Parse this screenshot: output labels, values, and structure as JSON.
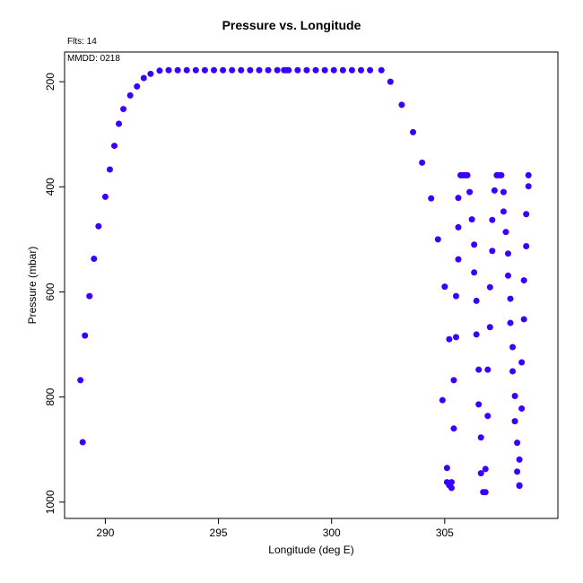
{
  "chart_data": {
    "type": "scatter",
    "title": "Pressure vs. Longitude",
    "xlabel": "Longitude (deg E)",
    "ylabel": "Pressure (mbar)",
    "annotations": {
      "flts": "Flts: 14",
      "mmdd": "MMDD: 0218"
    },
    "xlim": [
      288.2,
      310.0
    ],
    "ylim": [
      1031.0,
      143.5
    ],
    "y_reversed": true,
    "xticks": [
      290,
      295,
      300,
      305
    ],
    "yticks": [
      200,
      400,
      600,
      800,
      1000
    ],
    "grid": false,
    "marker_color": "#3a00ff",
    "points": [
      [
        289.0,
        886
      ],
      [
        288.9,
        768
      ],
      [
        289.1,
        683
      ],
      [
        289.3,
        608
      ],
      [
        289.5,
        537
      ],
      [
        289.7,
        475
      ],
      [
        290.0,
        419
      ],
      [
        290.2,
        367
      ],
      [
        290.4,
        322
      ],
      [
        290.6,
        280
      ],
      [
        290.8,
        252
      ],
      [
        291.1,
        226
      ],
      [
        291.4,
        209
      ],
      [
        291.7,
        193
      ],
      [
        292.0,
        185
      ],
      [
        292.4,
        179
      ],
      [
        292.8,
        178
      ],
      [
        293.2,
        178
      ],
      [
        293.6,
        178
      ],
      [
        294.0,
        178
      ],
      [
        294.4,
        178
      ],
      [
        294.8,
        178
      ],
      [
        295.2,
        178
      ],
      [
        295.6,
        178
      ],
      [
        296.0,
        178
      ],
      [
        296.4,
        178
      ],
      [
        296.8,
        178
      ],
      [
        297.2,
        178
      ],
      [
        297.6,
        178
      ],
      [
        297.9,
        178
      ],
      [
        298.0,
        178
      ],
      [
        298.1,
        178
      ],
      [
        298.5,
        178
      ],
      [
        298.9,
        178
      ],
      [
        299.3,
        178
      ],
      [
        299.7,
        178
      ],
      [
        300.1,
        178
      ],
      [
        300.5,
        178
      ],
      [
        300.9,
        178
      ],
      [
        301.3,
        178
      ],
      [
        301.7,
        178
      ],
      [
        302.2,
        178
      ],
      [
        302.6,
        200
      ],
      [
        303.1,
        244
      ],
      [
        303.6,
        296
      ],
      [
        304.0,
        354
      ],
      [
        304.4,
        422
      ],
      [
        304.7,
        500
      ],
      [
        304.9,
        806
      ],
      [
        305.0,
        590
      ],
      [
        305.1,
        935
      ],
      [
        305.1,
        962
      ],
      [
        305.2,
        690
      ],
      [
        305.2,
        968
      ],
      [
        305.3,
        973
      ],
      [
        305.3,
        962
      ],
      [
        305.4,
        860
      ],
      [
        305.4,
        768
      ],
      [
        305.5,
        686
      ],
      [
        305.5,
        608
      ],
      [
        305.6,
        538
      ],
      [
        305.6,
        477
      ],
      [
        305.6,
        421
      ],
      [
        305.7,
        378
      ],
      [
        305.8,
        378
      ],
      [
        305.9,
        378
      ],
      [
        306.0,
        378
      ],
      [
        306.1,
        410
      ],
      [
        306.2,
        462
      ],
      [
        306.3,
        510
      ],
      [
        306.3,
        563
      ],
      [
        306.4,
        617
      ],
      [
        306.4,
        681
      ],
      [
        306.5,
        748
      ],
      [
        306.5,
        814
      ],
      [
        306.6,
        877
      ],
      [
        306.6,
        945
      ],
      [
        306.7,
        981
      ],
      [
        306.8,
        981
      ],
      [
        306.8,
        937
      ],
      [
        306.9,
        836
      ],
      [
        306.9,
        748
      ],
      [
        307.0,
        667
      ],
      [
        307.0,
        591
      ],
      [
        307.1,
        522
      ],
      [
        307.1,
        463
      ],
      [
        307.2,
        407
      ],
      [
        307.3,
        378
      ],
      [
        307.4,
        378
      ],
      [
        307.5,
        378
      ],
      [
        307.6,
        410
      ],
      [
        307.6,
        447
      ],
      [
        307.7,
        486
      ],
      [
        307.8,
        527
      ],
      [
        307.8,
        569
      ],
      [
        307.9,
        613
      ],
      [
        307.9,
        659
      ],
      [
        308.0,
        705
      ],
      [
        308.0,
        751
      ],
      [
        308.1,
        798
      ],
      [
        308.1,
        846
      ],
      [
        308.2,
        887
      ],
      [
        308.2,
        942
      ],
      [
        308.3,
        968
      ],
      [
        308.3,
        969
      ],
      [
        308.3,
        919
      ],
      [
        308.4,
        822
      ],
      [
        308.4,
        734
      ],
      [
        308.5,
        652
      ],
      [
        308.5,
        578
      ],
      [
        308.6,
        513
      ],
      [
        308.6,
        452
      ],
      [
        308.7,
        399
      ],
      [
        308.7,
        378
      ]
    ]
  }
}
